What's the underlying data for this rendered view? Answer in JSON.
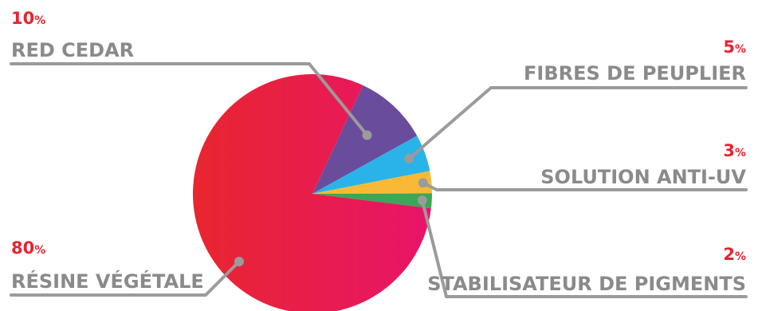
{
  "chart_data": {
    "type": "pie",
    "title": "",
    "slices": [
      {
        "label": "RÉSINE VÉGÉTALE",
        "value": 80,
        "value_label": "80%",
        "color": "#e6184f"
      },
      {
        "label": "RED CEDAR",
        "value": 10,
        "value_label": "10%",
        "color": "#6a4c9c"
      },
      {
        "label": "FIBRES DE PEUPLIER",
        "value": 5,
        "value_label": "5%",
        "color": "#29b3e8"
      },
      {
        "label": "SOLUTION ANTI-UV",
        "value": 3,
        "value_label": "3%",
        "color": "#f9b934"
      },
      {
        "label": "STABILISATEUR DE PIGMENTS",
        "value": 2,
        "value_label": "2%",
        "color": "#3aa856"
      }
    ],
    "legend": "none",
    "accent_color": "#e8232f",
    "label_color": "#8a8a8a"
  }
}
